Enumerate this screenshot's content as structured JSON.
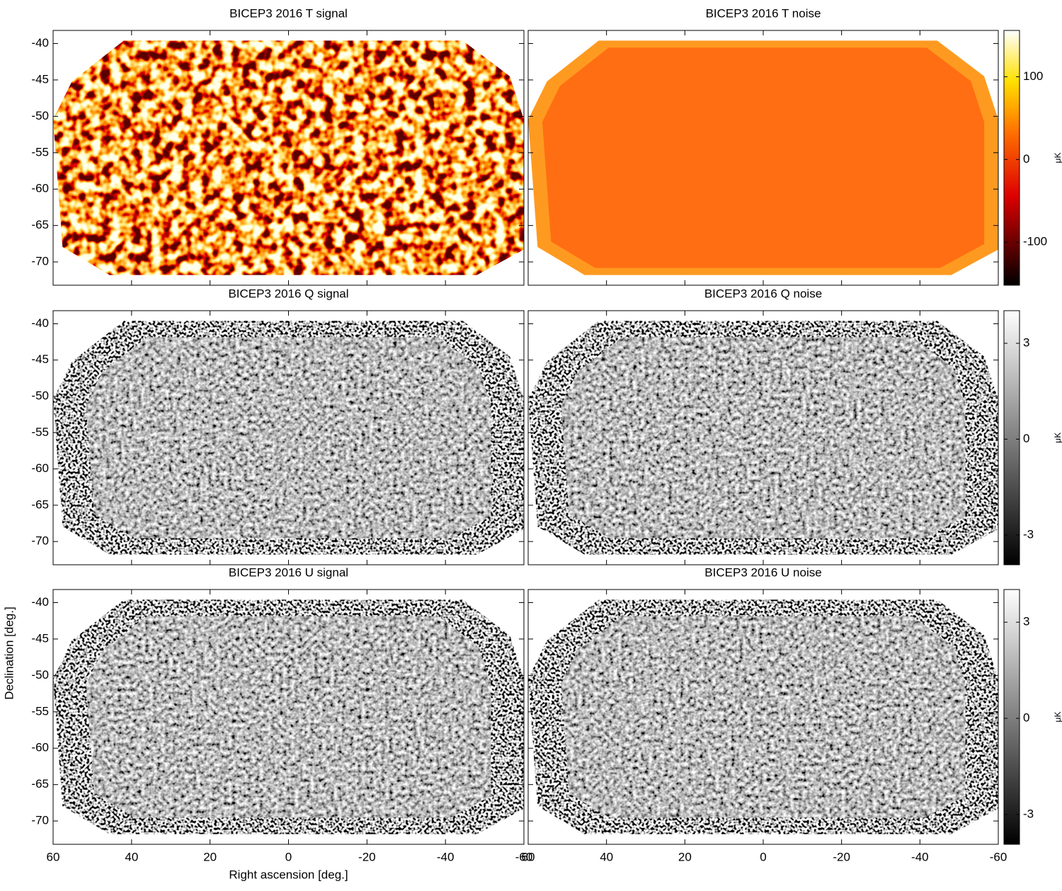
{
  "chart_data": [
    {
      "type": "map",
      "title": "BICEP3 2016 T signal",
      "colormap": "hot",
      "xlim": [
        60,
        -60
      ],
      "ylim": [
        -73.2,
        -38.2
      ],
      "xticks": [
        60,
        40,
        20,
        0,
        -20,
        -40,
        -60
      ],
      "yticks": [
        -40,
        -45,
        -50,
        -55,
        -60,
        -65,
        -70
      ],
      "show_xtick_labels": false,
      "show_ytick_labels": true
    },
    {
      "type": "map",
      "title": "BICEP3 2016 T noise",
      "colormap": "hot-flat",
      "xlim": [
        60,
        -60
      ],
      "ylim": [
        -73.2,
        -38.2
      ],
      "xticks": [
        60,
        40,
        20,
        0,
        -20,
        -40,
        -60
      ],
      "yticks": [
        -40,
        -45,
        -50,
        -55,
        -60,
        -65,
        -70
      ],
      "show_xtick_labels": false,
      "show_ytick_labels": false,
      "colorbar": {
        "label": "μK",
        "lim": [
          -152,
          156
        ],
        "ticks": [
          100,
          0,
          -100
        ]
      }
    },
    {
      "type": "map",
      "title": "BICEP3 2016 Q signal",
      "colormap": "gray",
      "xlim": [
        60,
        -60
      ],
      "ylim": [
        -73.2,
        -38.2
      ],
      "xticks": [
        60,
        40,
        20,
        0,
        -20,
        -40,
        -60
      ],
      "yticks": [
        -40,
        -45,
        -50,
        -55,
        -60,
        -65,
        -70
      ],
      "show_xtick_labels": false,
      "show_ytick_labels": true
    },
    {
      "type": "map",
      "title": "BICEP3 2016 Q noise",
      "colormap": "gray",
      "xlim": [
        60,
        -60
      ],
      "ylim": [
        -73.2,
        -38.2
      ],
      "xticks": [
        60,
        40,
        20,
        0,
        -20,
        -40,
        -60
      ],
      "yticks": [
        -40,
        -45,
        -50,
        -55,
        -60,
        -65,
        -70
      ],
      "show_xtick_labels": false,
      "show_ytick_labels": false,
      "colorbar": {
        "label": "μK",
        "lim": [
          -3.93,
          4.02
        ],
        "ticks": [
          3,
          0,
          -3
        ]
      }
    },
    {
      "type": "map",
      "title": "BICEP3 2016 U signal",
      "colormap": "gray",
      "xlim": [
        60,
        -60
      ],
      "ylim": [
        -73.2,
        -38.2
      ],
      "xticks": [
        60,
        40,
        20,
        0,
        -20,
        -40,
        -60
      ],
      "yticks": [
        -40,
        -45,
        -50,
        -55,
        -60,
        -65,
        -70
      ],
      "show_xtick_labels": true,
      "show_ytick_labels": true,
      "xlabel": "Right ascension [deg.]",
      "ylabel": "Declination [deg.]"
    },
    {
      "type": "map",
      "title": "BICEP3 2016 U noise",
      "colormap": "gray",
      "xlim": [
        60,
        -60
      ],
      "ylim": [
        -73.2,
        -38.2
      ],
      "xticks": [
        60,
        40,
        20,
        0,
        -20,
        -40,
        -60
      ],
      "yticks": [
        -40,
        -45,
        -50,
        -55,
        -60,
        -65,
        -70
      ],
      "show_xtick_labels": true,
      "show_ytick_labels": false,
      "colorbar": {
        "label": "μK",
        "lim": [
          -3.93,
          4.02
        ],
        "ticks": [
          3,
          0,
          -3
        ]
      }
    }
  ]
}
